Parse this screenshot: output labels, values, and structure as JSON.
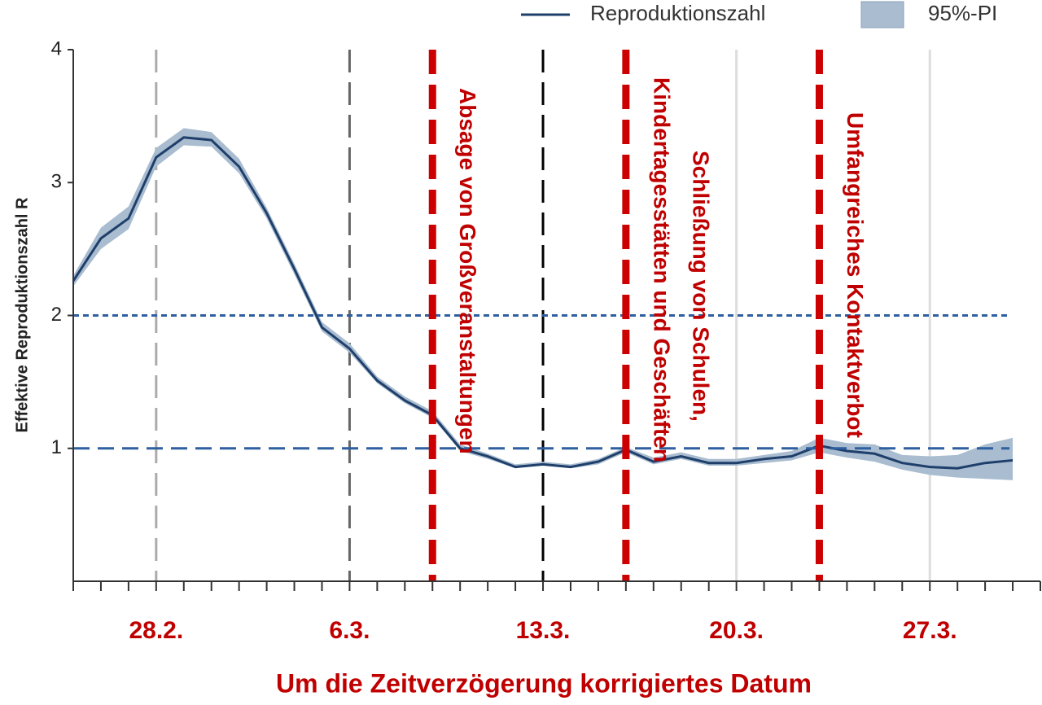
{
  "chart_data": {
    "type": "line",
    "y_label": "Effektive Reproduktionszahl R",
    "x_label": "Um die Zeitverzögerung korrigiertes Datum",
    "categories": [
      null,
      null,
      null,
      "28.2.",
      null,
      null,
      null,
      null,
      null,
      null,
      "6.3.",
      null,
      null,
      null,
      null,
      null,
      null,
      "13.3.",
      null,
      null,
      null,
      null,
      null,
      null,
      "20.3.",
      null,
      null,
      null,
      null,
      null,
      null,
      "27.3.",
      null,
      null,
      null,
      null
    ],
    "series": [
      {
        "name": "Reproduktionszahl",
        "color": "#1f3f6b",
        "values": [
          2.26,
          2.58,
          2.73,
          3.19,
          3.34,
          3.32,
          3.12,
          2.77,
          2.35,
          1.91,
          1.75,
          1.51,
          1.36,
          1.25,
          1.0,
          0.94,
          0.86,
          0.88,
          0.86,
          0.9,
          0.99,
          0.9,
          0.94,
          0.89,
          0.89,
          0.92,
          0.94,
          1.02,
          0.98,
          0.96,
          0.89,
          0.86,
          0.85,
          0.89,
          0.91,
          null
        ]
      }
    ],
    "interval": {
      "name": "95%-PI",
      "color": "#a9bcd0",
      "lower": [
        2.22,
        2.5,
        2.65,
        3.12,
        3.28,
        3.27,
        3.07,
        2.73,
        2.31,
        1.88,
        1.72,
        1.49,
        1.34,
        1.23,
        0.98,
        0.92,
        0.85,
        0.87,
        0.85,
        0.88,
        0.97,
        0.88,
        0.92,
        0.87,
        0.87,
        0.89,
        0.91,
        0.97,
        0.93,
        0.9,
        0.84,
        0.8,
        0.78,
        0.77,
        0.76,
        null
      ],
      "upper": [
        2.3,
        2.66,
        2.82,
        3.26,
        3.41,
        3.38,
        3.18,
        2.81,
        2.39,
        1.95,
        1.79,
        1.54,
        1.39,
        1.28,
        1.03,
        0.96,
        0.88,
        0.9,
        0.88,
        0.92,
        1.01,
        0.93,
        0.97,
        0.92,
        0.92,
        0.95,
        0.98,
        1.08,
        1.04,
        1.03,
        0.95,
        0.94,
        0.95,
        1.03,
        1.08,
        null
      ]
    },
    "ylim": [
      0,
      4
    ],
    "yticks": [
      1,
      2,
      3,
      4
    ],
    "hlines": [
      {
        "y": 2,
        "style": "dotted",
        "color": "#2e5fa0"
      },
      {
        "y": 1,
        "style": "dashed",
        "color": "#2e5fa0"
      }
    ],
    "vlines": [
      {
        "x": 3,
        "style": "dashed",
        "color": "#aaaaaa"
      },
      {
        "x": 10,
        "style": "dashed",
        "color": "#666666"
      },
      {
        "x": 17,
        "style": "dashed",
        "color": "#000000"
      },
      {
        "x": 24,
        "style": "solid",
        "color": "#dddddd"
      },
      {
        "x": 31,
        "style": "solid",
        "color": "#dddddd"
      },
      {
        "x": 13,
        "style": "bold",
        "color": "#cc0000",
        "annotation": [
          "Absage von Großveranstaltungen"
        ]
      },
      {
        "x": 20,
        "style": "bold",
        "color": "#cc0000",
        "annotation": [
          "Schließung von Schulen,",
          "Kindertagesstätten und Geschäften"
        ]
      },
      {
        "x": 27,
        "style": "bold",
        "color": "#cc0000",
        "annotation": [
          "Umfangreiches Kontaktverbot"
        ]
      }
    ],
    "label_color": "#c00000"
  }
}
